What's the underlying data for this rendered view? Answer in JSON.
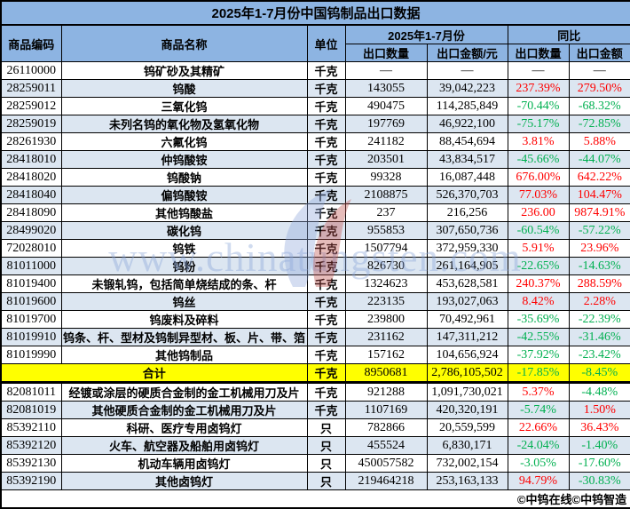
{
  "chart_data": {
    "type": "table",
    "title": "2025年1-7月份中国钨制品出口数据",
    "header": {
      "code_label": "商品编码",
      "name_label": "商品名称",
      "unit_label": "单位",
      "period_group": "2025年1-7月份",
      "yoy_group": "同比",
      "qty_label": "出口数量",
      "amount_label": "出口金额/元",
      "yoy_qty_label": "出口数量",
      "yoy_amount_label": "出口金额"
    },
    "rows": [
      {
        "code": "26110000",
        "name": "钨矿砂及其精矿",
        "unit": "千克",
        "qty": "—",
        "amount": "—",
        "yoy_qty": "—",
        "yoy_amount": "—",
        "yoy_qty_color": "black",
        "yoy_amount_color": "black",
        "shaded": false
      },
      {
        "code": "28259011",
        "name": "钨酸",
        "unit": "千克",
        "qty": "143055",
        "amount": "39,042,223",
        "yoy_qty": "237.39%",
        "yoy_amount": "279.50%",
        "yoy_qty_color": "red",
        "yoy_amount_color": "red",
        "shaded": true
      },
      {
        "code": "28259012",
        "name": "三氧化钨",
        "unit": "千克",
        "qty": "490475",
        "amount": "114,285,849",
        "yoy_qty": "-70.44%",
        "yoy_amount": "-68.32%",
        "yoy_qty_color": "green",
        "yoy_amount_color": "green",
        "shaded": false
      },
      {
        "code": "28259019",
        "name": "未列名钨的氧化物及氢氧化物",
        "unit": "千克",
        "qty": "197769",
        "amount": "46,922,100",
        "yoy_qty": "-75.17%",
        "yoy_amount": "-72.85%",
        "yoy_qty_color": "green",
        "yoy_amount_color": "green",
        "shaded": true
      },
      {
        "code": "28261930",
        "name": "六氟化钨",
        "unit": "千克",
        "qty": "241182",
        "amount": "88,454,694",
        "yoy_qty": "3.81%",
        "yoy_amount": "5.88%",
        "yoy_qty_color": "red",
        "yoy_amount_color": "red",
        "shaded": false
      },
      {
        "code": "28418010",
        "name": "仲钨酸铵",
        "unit": "千克",
        "qty": "203501",
        "amount": "43,834,517",
        "yoy_qty": "-45.66%",
        "yoy_amount": "-44.07%",
        "yoy_qty_color": "green",
        "yoy_amount_color": "green",
        "shaded": true
      },
      {
        "code": "28418020",
        "name": "钨酸钠",
        "unit": "千克",
        "qty": "99328",
        "amount": "16,087,448",
        "yoy_qty": "676.00%",
        "yoy_amount": "642.22%",
        "yoy_qty_color": "red",
        "yoy_amount_color": "red",
        "shaded": false
      },
      {
        "code": "28418040",
        "name": "偏钨酸铵",
        "unit": "千克",
        "qty": "2108875",
        "amount": "526,370,703",
        "yoy_qty": "77.03%",
        "yoy_amount": "104.47%",
        "yoy_qty_color": "red",
        "yoy_amount_color": "red",
        "shaded": true
      },
      {
        "code": "28418090",
        "name": "其他钨酸盐",
        "unit": "千克",
        "qty": "237",
        "amount": "216,256",
        "yoy_qty": "236.00",
        "yoy_amount": "9874.91%",
        "yoy_qty_color": "red",
        "yoy_amount_color": "red",
        "shaded": false
      },
      {
        "code": "28499020",
        "name": "碳化钨",
        "unit": "千克",
        "qty": "955853",
        "amount": "307,650,736",
        "yoy_qty": "-60.54%",
        "yoy_amount": "-57.22%",
        "yoy_qty_color": "green",
        "yoy_amount_color": "green",
        "shaded": true
      },
      {
        "code": "72028010",
        "name": "钨铁",
        "unit": "千克",
        "qty": "1507794",
        "amount": "372,959,330",
        "yoy_qty": "5.91%",
        "yoy_amount": "23.96%",
        "yoy_qty_color": "red",
        "yoy_amount_color": "red",
        "shaded": false
      },
      {
        "code": "81011000",
        "name": "钨粉",
        "unit": "千克",
        "qty": "826730",
        "amount": "261,164,905",
        "yoy_qty": "-22.65%",
        "yoy_amount": "-14.63%",
        "yoy_qty_color": "green",
        "yoy_amount_color": "green",
        "shaded": true
      },
      {
        "code": "81019400",
        "name": "未锻轧钨，包括简单烧结成的条、杆",
        "unit": "千克",
        "qty": "1324623",
        "amount": "453,628,581",
        "yoy_qty": "240.37%",
        "yoy_amount": "288.59%",
        "yoy_qty_color": "red",
        "yoy_amount_color": "red",
        "shaded": false
      },
      {
        "code": "81019600",
        "name": "钨丝",
        "unit": "千克",
        "qty": "223135",
        "amount": "193,027,063",
        "yoy_qty": "8.42%",
        "yoy_amount": "2.28%",
        "yoy_qty_color": "red",
        "yoy_amount_color": "red",
        "shaded": true
      },
      {
        "code": "81019700",
        "name": "钨废料及碎料",
        "unit": "千克",
        "qty": "239800",
        "amount": "70,492,961",
        "yoy_qty": "-35.69%",
        "yoy_amount": "-22.39%",
        "yoy_qty_color": "green",
        "yoy_amount_color": "green",
        "shaded": false
      },
      {
        "code": "81019910",
        "name": "钨条、杆、型材及钨制异型材、板、片、带、箔",
        "unit": "千克",
        "qty": "231162",
        "amount": "147,311,212",
        "yoy_qty": "-42.55%",
        "yoy_amount": "-31.46%",
        "yoy_qty_color": "green",
        "yoy_amount_color": "green",
        "shaded": true
      },
      {
        "code": "81019990",
        "name": "其他钨制品",
        "unit": "千克",
        "qty": "157162",
        "amount": "104,656,924",
        "yoy_qty": "-37.92%",
        "yoy_amount": "-23.42%",
        "yoy_qty_color": "green",
        "yoy_amount_color": "green",
        "shaded": false
      },
      {
        "is_total": true,
        "name": "合计",
        "unit": "千克",
        "qty": "8950681",
        "amount": "2,786,105,502",
        "yoy_qty": "-17.85%",
        "yoy_amount": "-8.45%",
        "yoy_qty_color": "green",
        "yoy_amount_color": "green",
        "shaded": false
      },
      {
        "code": "82081011",
        "name": "经镀或涂层的硬质合金制的金工机械用刀及片",
        "unit": "千克",
        "qty": "921288",
        "amount": "1,091,730,021",
        "yoy_qty": "5.37%",
        "yoy_amount": "-4.48%",
        "yoy_qty_color": "red",
        "yoy_amount_color": "green",
        "shaded": false
      },
      {
        "code": "82081019",
        "name": "其他硬质合金制的金工机械用刀及片",
        "unit": "千克",
        "qty": "1107169",
        "amount": "420,320,191",
        "yoy_qty": "-5.74%",
        "yoy_amount": "1.50%",
        "yoy_qty_color": "green",
        "yoy_amount_color": "red",
        "shaded": true
      },
      {
        "code": "85392110",
        "name": "科研、医疗专用卤钨灯",
        "unit": "只",
        "qty": "782866",
        "amount": "20,559,599",
        "yoy_qty": "22.66%",
        "yoy_amount": "36.43%",
        "yoy_qty_color": "red",
        "yoy_amount_color": "red",
        "shaded": false
      },
      {
        "code": "85392120",
        "name": "火车、航空器及船舶用卤钨灯",
        "unit": "只",
        "qty": "455524",
        "amount": "6,830,171",
        "yoy_qty": "-24.04%",
        "yoy_amount": "-1.40%",
        "yoy_qty_color": "green",
        "yoy_amount_color": "green",
        "shaded": true
      },
      {
        "code": "85392130",
        "name": "机动车辆用卤钨灯",
        "unit": "只",
        "qty": "450057582",
        "amount": "732,002,154",
        "yoy_qty": "-3.05%",
        "yoy_amount": "-17.60%",
        "yoy_qty_color": "green",
        "yoy_amount_color": "green",
        "shaded": false
      },
      {
        "code": "85392190",
        "name": "其他卤钨灯",
        "unit": "只",
        "qty": "219464218",
        "amount": "253,163,133",
        "yoy_qty": "94.79%",
        "yoy_amount": "-30.83%",
        "yoy_qty_color": "red",
        "yoy_amount_color": "green",
        "shaded": true
      }
    ],
    "footer_credit": "©中钨在线©中钨智造",
    "watermark": "www.chinatungsten.com"
  },
  "colors": {
    "header_bg": "#8db4e2",
    "row_alt_bg": "#dce6f1",
    "total_bg": "#ffff00",
    "positive": "#ff0000",
    "negative": "#00b050",
    "border": "#000000",
    "watermark": "#8ba6d9"
  }
}
